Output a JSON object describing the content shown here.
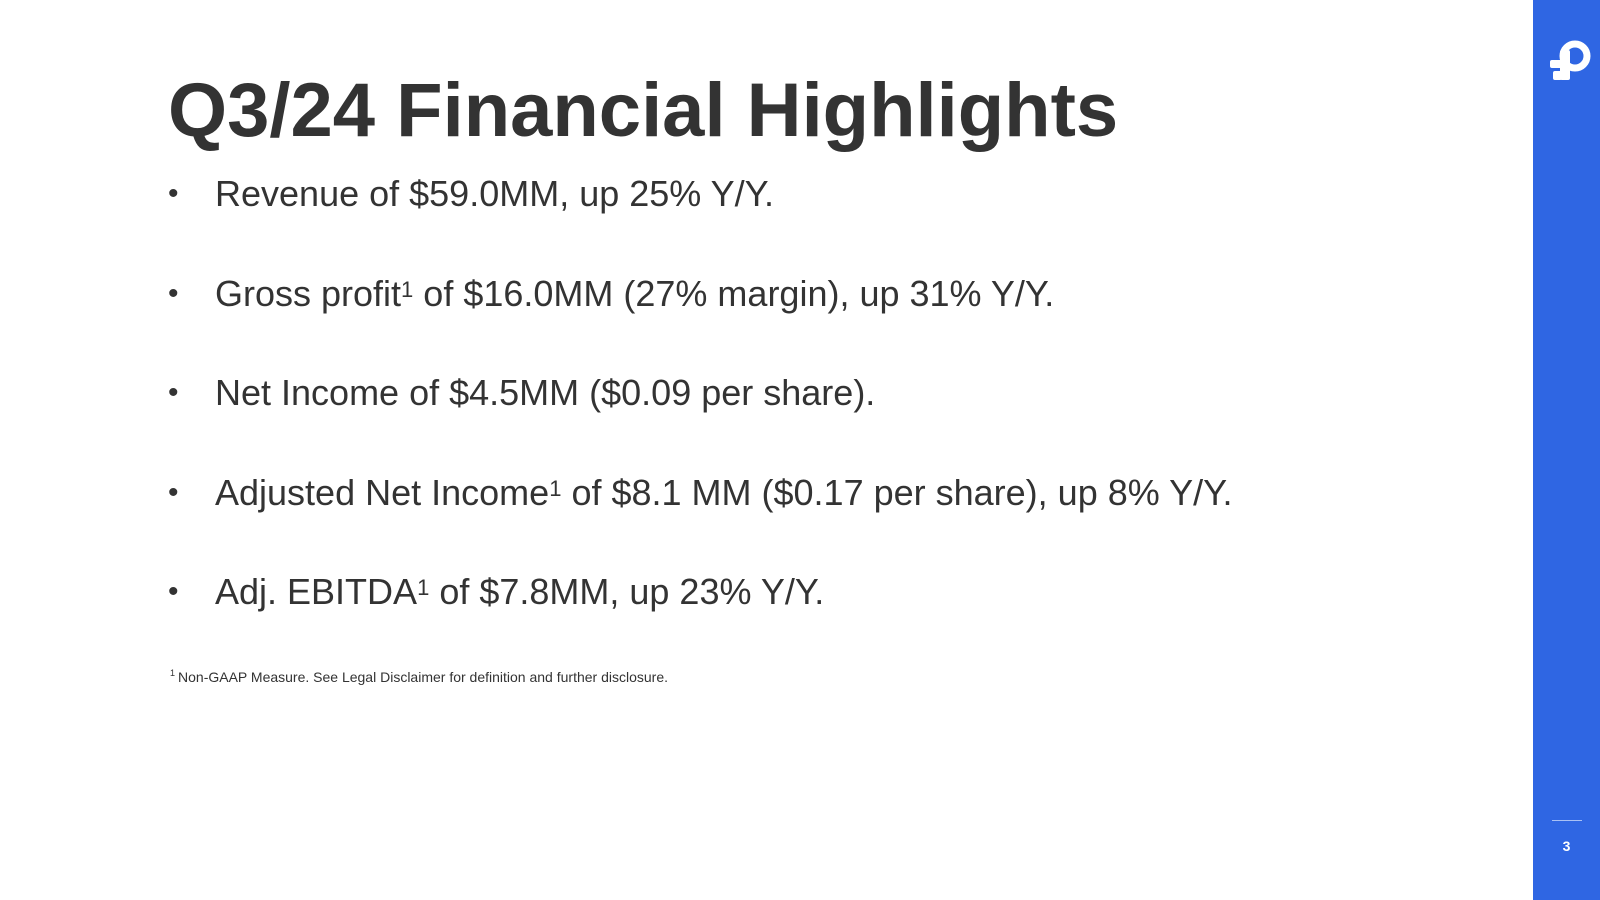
{
  "slide": {
    "title": "Q3/24 Financial Highlights",
    "bullet_symbol": "•",
    "bullets": [
      {
        "before": "Revenue of $59.0MM, up 25% Y/Y.",
        "sup": "",
        "after": ""
      },
      {
        "before": "Gross profit",
        "sup": "1",
        "after": " of $16.0MM (27% margin), up 31% Y/Y."
      },
      {
        "before": "Net Income of $4.5MM ($0.09 per share).",
        "sup": "",
        "after": ""
      },
      {
        "before": "Adjusted Net Income",
        "sup": "1",
        "after": " of $8.1 MM ($0.17 per share), up 8% Y/Y."
      },
      {
        "before": "Adj. EBITDA",
        "sup": "1",
        "after": " of $7.8MM, up 23% Y/Y."
      }
    ],
    "footnote": {
      "mark": "1",
      "text": "Non-GAAP Measure. See Legal Disclaimer for definition and further disclosure."
    }
  },
  "sidebar": {
    "logo_icon": "brand-logo-icon",
    "page_number": "3"
  },
  "colors": {
    "accent": "#2f66e3",
    "text": "#333333",
    "background": "#ffffff"
  }
}
